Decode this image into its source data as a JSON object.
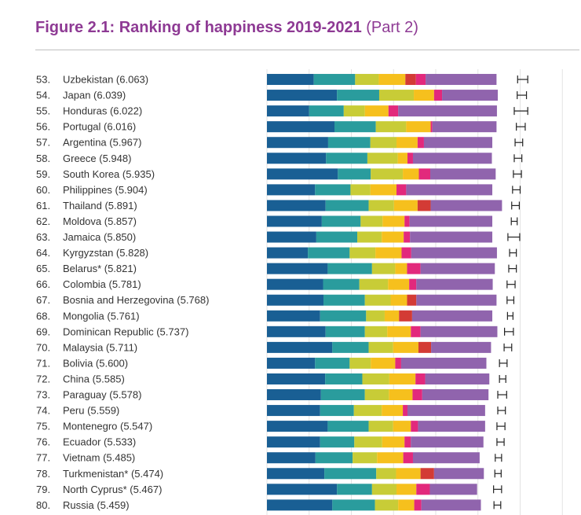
{
  "header": {
    "title": "Figure 2.1: Ranking of happiness 2019-2021",
    "part": "(Part 2)"
  },
  "colors": {
    "title": "#8e3a94",
    "segments": [
      "#195f94",
      "#2a9c9d",
      "#c8cc37",
      "#f6c01d",
      "#d33b35",
      "#e2297c",
      "#9064ad"
    ],
    "grid": "#e3e3e3",
    "whisker": "#222222"
  },
  "chart_data": {
    "type": "bar",
    "orientation": "horizontal",
    "stacked": true,
    "categories": [
      "Uzbekistan (6.063)",
      "Japan (6.039)",
      "Honduras (6.022)",
      "Portugal (6.016)",
      "Argentina (5.967)",
      "Greece (5.948)",
      "South Korea (5.935)",
      "Philippines (5.904)",
      "Thailand (5.891)",
      "Moldova (5.857)",
      "Jamaica (5.850)",
      "Kyrgyzstan (5.828)",
      "Belarus* (5.821)",
      "Colombia (5.781)",
      "Bosnia and Herzegovina (5.768)",
      "Mongolia (5.761)",
      "Dominican Republic (5.737)",
      "Malaysia (5.711)",
      "Bolivia (5.600)",
      "China (5.585)",
      "Paraguay (5.578)",
      "Peru (5.559)",
      "Montenegro (5.547)",
      "Ecuador (5.533)",
      "Vietnam (5.485)",
      "Turkmenistan* (5.474)",
      "North Cyprus* (5.467)",
      "Russia (5.459)"
    ],
    "ranks": [
      "53.",
      "54.",
      "55.",
      "56.",
      "57.",
      "58.",
      "59.",
      "60.",
      "61.",
      "62.",
      "63.",
      "64.",
      "65.",
      "66.",
      "67.",
      "68.",
      "69.",
      "70.",
      "71.",
      "72.",
      "73.",
      "74.",
      "75.",
      "76.",
      "77.",
      "78.",
      "79.",
      "80."
    ],
    "x_max": 7.2,
    "segments": [
      [
        1.11,
        0.98,
        0.56,
        0.63,
        0.25,
        0.23,
        1.68
      ],
      [
        1.66,
        1.0,
        0.82,
        0.48,
        0.0,
        0.19,
        1.32
      ],
      [
        1.0,
        0.82,
        0.5,
        0.56,
        0.0,
        0.23,
        2.34
      ],
      [
        1.6,
        0.98,
        0.72,
        0.58,
        0.0,
        0.04,
        1.52
      ],
      [
        1.45,
        1.0,
        0.62,
        0.5,
        0.0,
        0.15,
        1.62
      ],
      [
        1.4,
        0.98,
        0.72,
        0.23,
        0.0,
        0.13,
        1.87
      ],
      [
        1.68,
        0.78,
        0.76,
        0.38,
        0.0,
        0.27,
        1.55
      ],
      [
        1.14,
        0.84,
        0.47,
        0.62,
        0.0,
        0.23,
        2.04
      ],
      [
        1.39,
        1.02,
        0.6,
        0.56,
        0.31,
        0.0,
        1.69
      ],
      [
        1.3,
        0.92,
        0.52,
        0.52,
        0.0,
        0.12,
        1.96
      ],
      [
        1.17,
        0.97,
        0.58,
        0.52,
        0.0,
        0.15,
        1.95
      ],
      [
        0.97,
        0.99,
        0.61,
        0.62,
        0.0,
        0.23,
        2.03
      ],
      [
        1.44,
        1.05,
        0.55,
        0.28,
        0.0,
        0.32,
        1.76
      ],
      [
        1.33,
        0.86,
        0.68,
        0.5,
        0.0,
        0.17,
        1.81
      ],
      [
        1.34,
        0.98,
        0.61,
        0.39,
        0.22,
        0.0,
        1.9
      ],
      [
        1.26,
        1.09,
        0.44,
        0.34,
        0.31,
        0.0,
        1.9
      ],
      [
        1.39,
        0.93,
        0.53,
        0.56,
        0.0,
        0.23,
        1.82
      ],
      [
        1.55,
        0.86,
        0.58,
        0.6,
        0.3,
        0.0,
        1.42
      ],
      [
        1.14,
        0.82,
        0.5,
        0.58,
        0.0,
        0.14,
        2.02
      ],
      [
        1.38,
        0.88,
        0.64,
        0.62,
        0.0,
        0.23,
        1.52
      ],
      [
        1.28,
        1.04,
        0.57,
        0.56,
        0.0,
        0.23,
        1.57
      ],
      [
        1.26,
        0.8,
        0.66,
        0.5,
        0.0,
        0.11,
        1.84
      ],
      [
        1.44,
        0.97,
        0.58,
        0.42,
        0.0,
        0.17,
        1.59
      ],
      [
        1.26,
        0.81,
        0.66,
        0.53,
        0.0,
        0.15,
        1.72
      ],
      [
        1.15,
        0.88,
        0.58,
        0.62,
        0.0,
        0.23,
        1.58
      ],
      [
        1.36,
        1.23,
        0.47,
        0.58,
        0.32,
        0.0,
        1.18
      ],
      [
        1.66,
        0.83,
        0.58,
        0.47,
        0.0,
        0.32,
        1.12
      ],
      [
        1.55,
        1.01,
        0.55,
        0.38,
        0.0,
        0.17,
        1.41
      ]
    ],
    "error_low": [
      5.94,
      5.93,
      5.86,
      5.91,
      5.88,
      5.86,
      5.84,
      5.82,
      5.8,
      5.79,
      5.71,
      5.75,
      5.73,
      5.69,
      5.69,
      5.7,
      5.63,
      5.62,
      5.51,
      5.51,
      5.47,
      5.47,
      5.45,
      5.45,
      5.41,
      5.4,
      5.37,
      5.38
    ],
    "error_high": [
      6.18,
      6.15,
      6.18,
      6.12,
      6.06,
      6.04,
      6.03,
      6.0,
      5.98,
      5.93,
      5.99,
      5.91,
      5.91,
      5.88,
      5.85,
      5.83,
      5.84,
      5.8,
      5.69,
      5.66,
      5.68,
      5.65,
      5.64,
      5.62,
      5.56,
      5.55,
      5.56,
      5.54
    ]
  }
}
